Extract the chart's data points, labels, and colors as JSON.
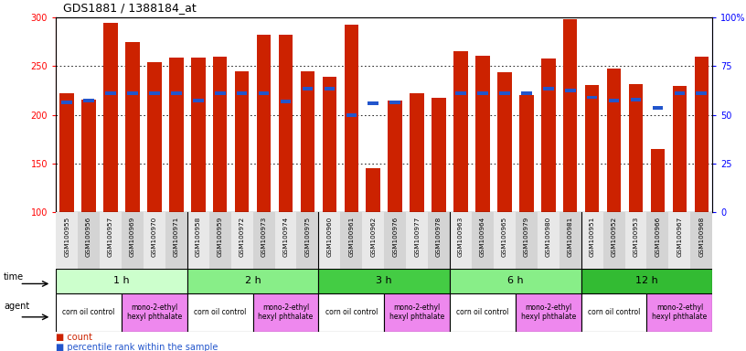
{
  "title": "GDS1881 / 1388184_at",
  "samples": [
    "GSM100955",
    "GSM100956",
    "GSM100957",
    "GSM100969",
    "GSM100970",
    "GSM100971",
    "GSM100958",
    "GSM100959",
    "GSM100972",
    "GSM100973",
    "GSM100974",
    "GSM100975",
    "GSM100960",
    "GSM100961",
    "GSM100962",
    "GSM100976",
    "GSM100977",
    "GSM100978",
    "GSM100963",
    "GSM100964",
    "GSM100965",
    "GSM100979",
    "GSM100980",
    "GSM100981",
    "GSM100951",
    "GSM100952",
    "GSM100953",
    "GSM100966",
    "GSM100967",
    "GSM100968"
  ],
  "red_values": [
    222,
    216,
    295,
    275,
    254,
    259,
    259,
    260,
    245,
    282,
    282,
    245,
    239,
    293,
    145,
    215,
    222,
    218,
    265,
    261,
    244,
    220,
    258,
    298,
    231,
    248,
    232,
    165,
    230,
    260
  ],
  "blue_percentiles": [
    213,
    215,
    222,
    222,
    222,
    222,
    215,
    222,
    222,
    222,
    214,
    227,
    227,
    200,
    212,
    213,
    null,
    null,
    222,
    222,
    222,
    222,
    227,
    225,
    218,
    215,
    216,
    207,
    222,
    222
  ],
  "ylim_left": [
    100,
    300
  ],
  "ylim_right": [
    0,
    100
  ],
  "yticks_left": [
    100,
    150,
    200,
    250,
    300
  ],
  "yticks_right": [
    0,
    25,
    50,
    75,
    100
  ],
  "ytick_labels_right": [
    "0",
    "25",
    "50",
    "75",
    "100%"
  ],
  "bar_color": "#cc2200",
  "blue_color": "#2255cc",
  "time_groups": [
    {
      "label": "1 h",
      "start": 0,
      "end": 6,
      "color": "#ccffcc"
    },
    {
      "label": "2 h",
      "start": 6,
      "end": 12,
      "color": "#88ee88"
    },
    {
      "label": "3 h",
      "start": 12,
      "end": 18,
      "color": "#44cc44"
    },
    {
      "label": "6 h",
      "start": 18,
      "end": 24,
      "color": "#88ee88"
    },
    {
      "label": "12 h",
      "start": 24,
      "end": 30,
      "color": "#33bb33"
    }
  ],
  "agent_groups": [
    {
      "label": "corn oil control",
      "start": 0,
      "end": 3,
      "color": "#ffffff"
    },
    {
      "label": "mono-2-ethyl\nhexyl phthalate",
      "start": 3,
      "end": 6,
      "color": "#ee88ee"
    },
    {
      "label": "corn oil control",
      "start": 6,
      "end": 9,
      "color": "#ffffff"
    },
    {
      "label": "mono-2-ethyl\nhexyl phthalate",
      "start": 9,
      "end": 12,
      "color": "#ee88ee"
    },
    {
      "label": "corn oil control",
      "start": 12,
      "end": 15,
      "color": "#ffffff"
    },
    {
      "label": "mono-2-ethyl\nhexyl phthalate",
      "start": 15,
      "end": 18,
      "color": "#ee88ee"
    },
    {
      "label": "corn oil control",
      "start": 18,
      "end": 21,
      "color": "#ffffff"
    },
    {
      "label": "mono-2-ethyl\nhexyl phthalate",
      "start": 21,
      "end": 24,
      "color": "#ee88ee"
    },
    {
      "label": "corn oil control",
      "start": 24,
      "end": 27,
      "color": "#ffffff"
    },
    {
      "label": "mono-2-ethyl\nhexyl phthalate",
      "start": 27,
      "end": 30,
      "color": "#ee88ee"
    }
  ]
}
